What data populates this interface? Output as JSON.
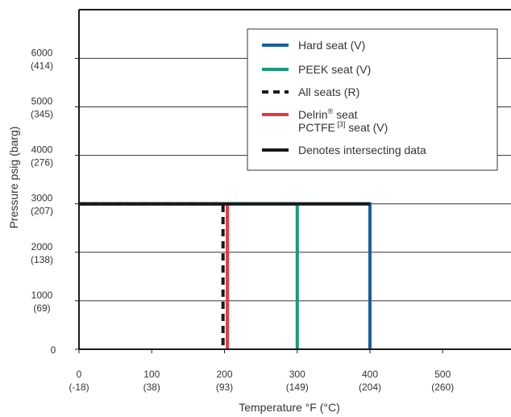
{
  "chart_data": {
    "type": "line",
    "xlabel": "Temperature °F (°C)",
    "ylabel": "Pressure psig (barg)",
    "xlim": [
      0,
      590
    ],
    "ylim": [
      0,
      7000
    ],
    "grid": "horizontal",
    "legend_position": "top-right",
    "x_ticks": [
      {
        "value": 0,
        "label": "0",
        "sub": "(-18)"
      },
      {
        "value": 100,
        "label": "100",
        "sub": "(38)"
      },
      {
        "value": 200,
        "label": "200",
        "sub": "(93)"
      },
      {
        "value": 300,
        "label": "300",
        "sub": "(149)"
      },
      {
        "value": 400,
        "label": "400",
        "sub": "(204)"
      },
      {
        "value": 500,
        "label": "500",
        "sub": "(260)"
      }
    ],
    "y_ticks": [
      {
        "value": 0,
        "label": "0",
        "sub": ""
      },
      {
        "value": 1000,
        "label": "1000",
        "sub": "(69)"
      },
      {
        "value": 2000,
        "label": "2000",
        "sub": "(138)"
      },
      {
        "value": 3000,
        "label": "3000",
        "sub": "(207)"
      },
      {
        "value": 4000,
        "label": "4000",
        "sub": "(276)"
      },
      {
        "value": 5000,
        "label": "5000",
        "sub": "(345)"
      },
      {
        "value": 6000,
        "label": "6000",
        "sub": "(414)"
      }
    ],
    "series": [
      {
        "name": "Hard seat (V)",
        "color": "#1a5fa0",
        "style": "solid",
        "x": [
          0,
          400,
          400
        ],
        "y": [
          3000,
          3000,
          0
        ]
      },
      {
        "name": "PEEK seat (V)",
        "color": "#1a9a78",
        "style": "solid",
        "x": [
          0,
          300,
          300
        ],
        "y": [
          3000,
          3000,
          0
        ]
      },
      {
        "name": "Delrin® seat PCTFE [3] seat (V)",
        "color": "#e6393e",
        "style": "solid",
        "x": [
          0,
          204,
          204
        ],
        "y": [
          3000,
          3000,
          0
        ]
      },
      {
        "name": "All seats (R)",
        "color": "#1a1a1a",
        "style": "dashed",
        "x": [
          0,
          198,
          198
        ],
        "y": [
          3000,
          3000,
          0
        ]
      },
      {
        "name": "Denotes intersecting data",
        "color": "#1a1a1a",
        "style": "solid",
        "x": [
          0,
          400
        ],
        "y": [
          3000,
          3000
        ]
      }
    ],
    "legend": [
      {
        "label": "Hard seat (V)",
        "color": "#1a5fa0",
        "style": "solid"
      },
      {
        "label": "PEEK seat (V)",
        "color": "#1a9a78",
        "style": "solid"
      },
      {
        "label": "All seats (R)",
        "color": "#1a1a1a",
        "style": "dashed"
      },
      {
        "label": "Delrin",
        "sup": "®",
        "label_tail": " seat",
        "line2": "PCTFE",
        "line2_sup": " [3]",
        "line2_tail": " seat (V)",
        "color": "#e6393e",
        "style": "solid"
      },
      {
        "label": "Denotes intersecting data",
        "color": "#1a1a1a",
        "style": "solid"
      }
    ]
  }
}
